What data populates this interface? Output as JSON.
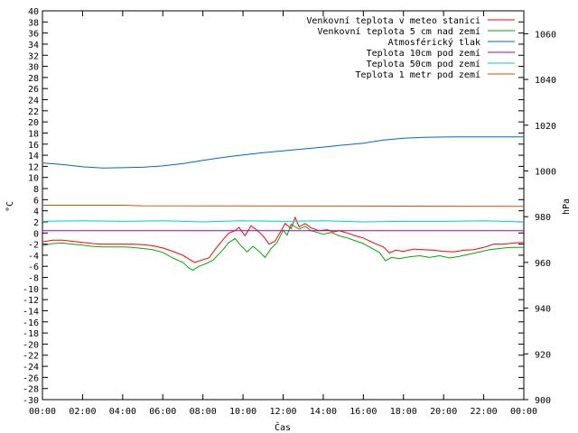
{
  "chart_data": {
    "type": "line",
    "xlabel": "Čas",
    "ylabel_left": "°C",
    "ylabel_right": "hPa",
    "x_ticks": [
      "00:00",
      "02:00",
      "04:00",
      "06:00",
      "08:00",
      "10:00",
      "12:00",
      "14:00",
      "16:00",
      "18:00",
      "20:00",
      "22:00",
      "00:00"
    ],
    "xlim_hours": [
      0,
      24
    ],
    "ylim_left": [
      -30,
      40
    ],
    "y_ticks_left": [
      40,
      38,
      36,
      34,
      32,
      30,
      28,
      26,
      24,
      22,
      20,
      18,
      16,
      14,
      12,
      10,
      8,
      6,
      4,
      2,
      0,
      -2,
      -4,
      -6,
      -8,
      -10,
      -12,
      -14,
      -16,
      -18,
      -20,
      -22,
      -24,
      -26,
      -28,
      -30
    ],
    "ylim_right": [
      900,
      1070
    ],
    "y_ticks_right": [
      1060,
      1040,
      1020,
      1000,
      980,
      960,
      940,
      920,
      900
    ],
    "legend_position": "top-right",
    "series": [
      {
        "name": "Venkovní teplota v meteo stanici",
        "color": "#ff0000",
        "axis": "left",
        "points": [
          [
            0,
            -1.6
          ],
          [
            0.5,
            -1.3
          ],
          [
            1,
            -1.3
          ],
          [
            1.5,
            -1.5
          ],
          [
            2,
            -1.7
          ],
          [
            2.5,
            -1.9
          ],
          [
            3,
            -2
          ],
          [
            3.5,
            -2
          ],
          [
            4,
            -2
          ],
          [
            4.5,
            -2
          ],
          [
            5,
            -2.1
          ],
          [
            5.5,
            -2.3
          ],
          [
            6,
            -2.7
          ],
          [
            6.5,
            -3.3
          ],
          [
            7,
            -4
          ],
          [
            7.3,
            -4.7
          ],
          [
            7.6,
            -5.3
          ],
          [
            8,
            -4.8
          ],
          [
            8.3,
            -4.5
          ],
          [
            8.6,
            -3
          ],
          [
            9,
            -1.2
          ],
          [
            9.3,
            0
          ],
          [
            9.6,
            0.4
          ],
          [
            9.8,
            1
          ],
          [
            10.1,
            -0.5
          ],
          [
            10.4,
            1.3
          ],
          [
            10.7,
            0.5
          ],
          [
            11,
            -0.5
          ],
          [
            11.3,
            -2
          ],
          [
            11.6,
            -1.5
          ],
          [
            11.9,
            0.4
          ],
          [
            12.1,
            1.7
          ],
          [
            12.4,
            0.8
          ],
          [
            12.6,
            2.8
          ],
          [
            12.8,
            1.1
          ],
          [
            13.1,
            1.7
          ],
          [
            13.4,
            0.9
          ],
          [
            13.8,
            0.4
          ],
          [
            14.2,
            0.6
          ],
          [
            14.5,
            0.2
          ],
          [
            14.8,
            0.4
          ],
          [
            15.2,
            0
          ],
          [
            15.6,
            -0.5
          ],
          [
            16,
            -0.9
          ],
          [
            16.4,
            -1.6
          ],
          [
            16.7,
            -2.1
          ],
          [
            17,
            -2.5
          ],
          [
            17.3,
            -3.6
          ],
          [
            17.6,
            -3.1
          ],
          [
            18,
            -3.3
          ],
          [
            18.5,
            -2.9
          ],
          [
            19,
            -3
          ],
          [
            19.5,
            -3.1
          ],
          [
            20,
            -3.3
          ],
          [
            20.5,
            -3.4
          ],
          [
            21,
            -3.1
          ],
          [
            21.5,
            -3
          ],
          [
            22,
            -2.6
          ],
          [
            22.5,
            -2
          ],
          [
            23,
            -2
          ],
          [
            23.5,
            -1.8
          ],
          [
            24,
            -1.7
          ]
        ]
      },
      {
        "name": "Venkovní teplota 5 cm nad zemí",
        "color": "#00aa00",
        "axis": "left",
        "points": [
          [
            0,
            -2.3
          ],
          [
            0.5,
            -1.9
          ],
          [
            1,
            -1.8
          ],
          [
            1.5,
            -2
          ],
          [
            2,
            -2.2
          ],
          [
            2.5,
            -2.4
          ],
          [
            3,
            -2.5
          ],
          [
            3.5,
            -2.5
          ],
          [
            4,
            -2.5
          ],
          [
            4.5,
            -2.6
          ],
          [
            5,
            -2.8
          ],
          [
            5.5,
            -3
          ],
          [
            6,
            -3.5
          ],
          [
            6.5,
            -4.5
          ],
          [
            7,
            -5.3
          ],
          [
            7.3,
            -6.3
          ],
          [
            7.5,
            -6.7
          ],
          [
            7.8,
            -6
          ],
          [
            8.1,
            -5.6
          ],
          [
            8.5,
            -4.9
          ],
          [
            9,
            -3
          ],
          [
            9.3,
            -1.7
          ],
          [
            9.6,
            -1
          ],
          [
            9.9,
            -2.3
          ],
          [
            10.2,
            -3.4
          ],
          [
            10.5,
            -2.4
          ],
          [
            10.8,
            -3.3
          ],
          [
            11.1,
            -4.4
          ],
          [
            11.4,
            -2.8
          ],
          [
            11.7,
            -1.7
          ],
          [
            12,
            0.5
          ],
          [
            12.2,
            -0.4
          ],
          [
            12.4,
            1.6
          ],
          [
            12.6,
            1.1
          ],
          [
            12.8,
            0.7
          ],
          [
            13.1,
            1.2
          ],
          [
            13.4,
            0.4
          ],
          [
            13.7,
            0.1
          ],
          [
            14,
            -0.2
          ],
          [
            14.4,
            0.1
          ],
          [
            14.8,
            -0.5
          ],
          [
            15.2,
            -0.9
          ],
          [
            15.6,
            -1.4
          ],
          [
            16,
            -1.9
          ],
          [
            16.4,
            -2.7
          ],
          [
            16.8,
            -3.5
          ],
          [
            17.1,
            -5
          ],
          [
            17.4,
            -4.4
          ],
          [
            17.8,
            -4.6
          ],
          [
            18.3,
            -4.3
          ],
          [
            18.8,
            -4.1
          ],
          [
            19.3,
            -4.4
          ],
          [
            19.8,
            -4.1
          ],
          [
            20.3,
            -4.5
          ],
          [
            20.8,
            -4.2
          ],
          [
            21.3,
            -3.8
          ],
          [
            21.8,
            -3.4
          ],
          [
            22.3,
            -3
          ],
          [
            22.8,
            -2.8
          ],
          [
            23.3,
            -2.6
          ],
          [
            24,
            -2.6
          ]
        ]
      },
      {
        "name": "Atmosférický tlak",
        "color": "#0066cc",
        "axis": "right",
        "points": [
          [
            0,
            1003.5
          ],
          [
            1,
            1002.8
          ],
          [
            2,
            1001.8
          ],
          [
            3,
            1001.3
          ],
          [
            4,
            1001.4
          ],
          [
            5,
            1001.6
          ],
          [
            6,
            1002.2
          ],
          [
            7,
            1003.2
          ],
          [
            8,
            1004.6
          ],
          [
            9,
            1005.9
          ],
          [
            10,
            1007
          ],
          [
            11,
            1008
          ],
          [
            12,
            1008.8
          ],
          [
            13,
            1009.6
          ],
          [
            14,
            1010.4
          ],
          [
            15,
            1011.3
          ],
          [
            16,
            1012.1
          ],
          [
            17,
            1013.5
          ],
          [
            18,
            1014.3
          ],
          [
            19,
            1014.7
          ],
          [
            20,
            1014.8
          ],
          [
            21,
            1014.9
          ],
          [
            22,
            1014.9
          ],
          [
            23,
            1014.9
          ],
          [
            24,
            1014.9
          ]
        ]
      },
      {
        "name": "Teplota 10cm pod zemí",
        "color": "#aa00aa",
        "axis": "left",
        "points": [
          [
            0,
            0.4
          ],
          [
            24,
            0.4
          ]
        ]
      },
      {
        "name": "Teplota 50cm pod zemí",
        "color": "#00cccc",
        "axis": "left",
        "points": [
          [
            0,
            2.1
          ],
          [
            2,
            2.2
          ],
          [
            4,
            2.1
          ],
          [
            6,
            2.2
          ],
          [
            8,
            2
          ],
          [
            10,
            2.2
          ],
          [
            12,
            2.1
          ],
          [
            14,
            2.2
          ],
          [
            16,
            2
          ],
          [
            18,
            2.1
          ],
          [
            20,
            2.1
          ],
          [
            22,
            2.2
          ],
          [
            24,
            2
          ]
        ]
      },
      {
        "name": "Teplota 1 metr pod zemí",
        "color": "#cc5500",
        "axis": "left",
        "points": [
          [
            0,
            5
          ],
          [
            4,
            5
          ],
          [
            5,
            4.9
          ],
          [
            24,
            4.8
          ]
        ]
      }
    ]
  }
}
